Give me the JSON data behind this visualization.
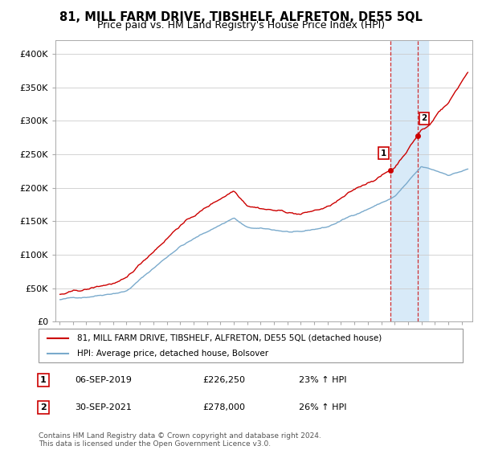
{
  "title": "81, MILL FARM DRIVE, TIBSHELF, ALFRETON, DE55 5QL",
  "subtitle": "Price paid vs. HM Land Registry's House Price Index (HPI)",
  "title_fontsize": 10.5,
  "subtitle_fontsize": 9,
  "ylabel_ticks": [
    "£0",
    "£50K",
    "£100K",
    "£150K",
    "£200K",
    "£250K",
    "£300K",
    "£350K",
    "£400K"
  ],
  "ytick_vals": [
    0,
    50000,
    100000,
    150000,
    200000,
    250000,
    300000,
    350000,
    400000
  ],
  "ylim": [
    0,
    420000
  ],
  "xlim_start": 1994.7,
  "xlim_end": 2025.8,
  "marker1_x": 2019.67,
  "marker1_y": 226250,
  "marker2_x": 2021.75,
  "marker2_y": 278000,
  "transaction1_date": "06-SEP-2019",
  "transaction1_price": "£226,250",
  "transaction1_info": "23% ↑ HPI",
  "transaction2_date": "30-SEP-2021",
  "transaction2_price": "£278,000",
  "transaction2_info": "26% ↑ HPI",
  "legend_line1": "81, MILL FARM DRIVE, TIBSHELF, ALFRETON, DE55 5QL (detached house)",
  "legend_line2": "HPI: Average price, detached house, Bolsover",
  "footer": "Contains HM Land Registry data © Crown copyright and database right 2024.\nThis data is licensed under the Open Government Licence v3.0.",
  "highlight_start": 2019.67,
  "highlight_end": 2022.5,
  "red_line_color": "#cc0000",
  "blue_line_color": "#7aaacc",
  "highlight_color": "#d8eaf8",
  "vline_color": "#cc0000"
}
